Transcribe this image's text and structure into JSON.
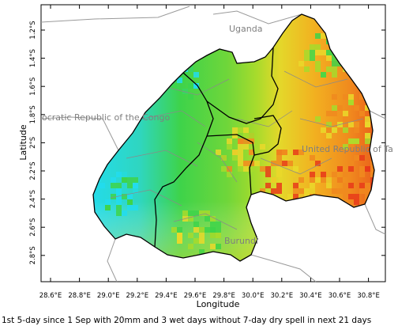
{
  "caption": "1st 5-day since 1 Sep with 20mm and 3 wet days without 7-day dry spell in next 21 days",
  "x_axis": {
    "title": "Longitude",
    "ticks": [
      "28.6°E",
      "28.8°E",
      "29.0°E",
      "29.2°E",
      "29.4°E",
      "29.6°E",
      "29.8°E",
      "30.0°E",
      "30.2°E",
      "30.4°E",
      "30.6°E",
      "30.8°E"
    ]
  },
  "y_axis": {
    "title": "Latitude",
    "ticks": [
      "1.2°S",
      "1.4°S",
      "1.6°S",
      "1.8°S",
      "2°S",
      "2.2°S",
      "2.4°S",
      "2.6°S",
      "2.8°S"
    ]
  },
  "labels": {
    "uganda": "Uganda",
    "drc": "ocratic Republic of the Congo",
    "tanzania": "United Republic of Ta",
    "burundi": "Burundi"
  },
  "colors": {
    "cyan": "#22dcee",
    "green": "#3ed34a",
    "yellow_green": "#a7db2c",
    "yellow": "#ead82a",
    "orange": "#f08a1e",
    "red": "#e83a1a",
    "border_gray": "#7f7f7f",
    "border_black": "#000000"
  }
}
